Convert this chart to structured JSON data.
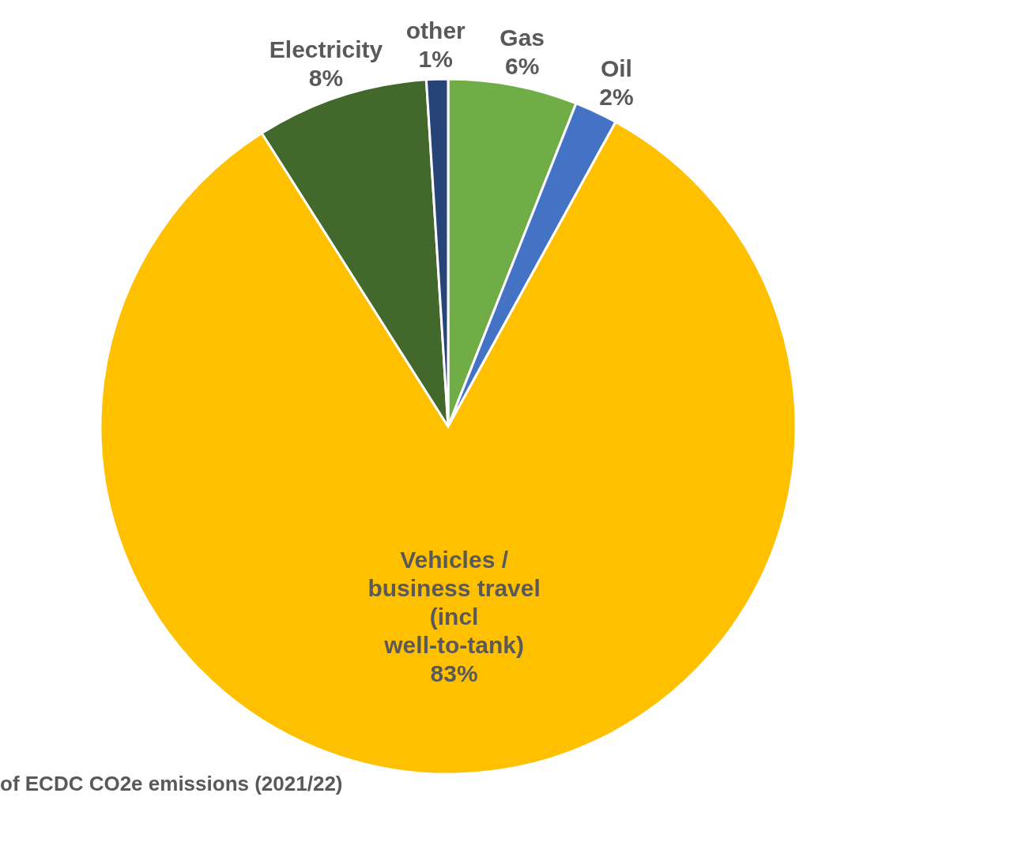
{
  "chart_data": {
    "type": "pie",
    "title": "of ECDC CO2e emissions (2021/22)",
    "categories": [
      "Gas",
      "Oil",
      "Vehicles / business travel (incl well-to-tank)",
      "Electricity",
      "other"
    ],
    "values": [
      6,
      2,
      83,
      8,
      1
    ],
    "value_labels": [
      "6%",
      "2%",
      "83%",
      "8%",
      "1%"
    ],
    "colors": [
      "#70ad47",
      "#4472c4",
      "#ffc000",
      "#43682b",
      "#264478"
    ]
  }
}
